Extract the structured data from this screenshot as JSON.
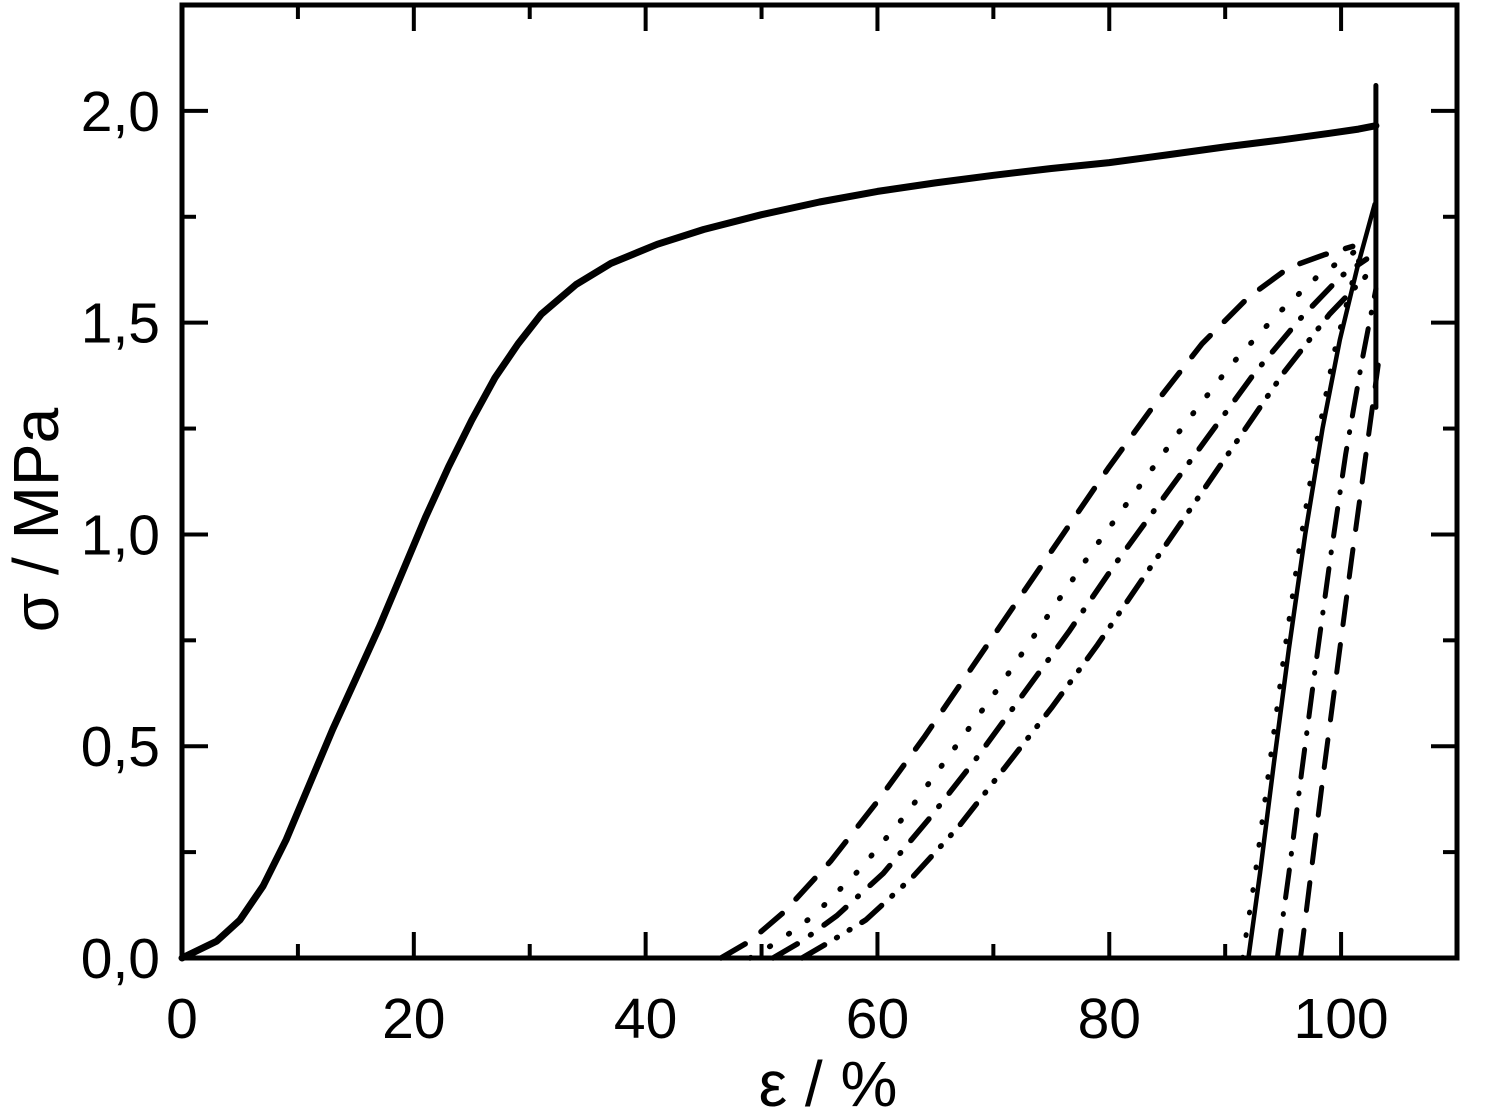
{
  "figure": {
    "background_color": "#ffffff",
    "ink_color": "#000000"
  },
  "chart_data": {
    "type": "line",
    "title": "",
    "xlabel": "ε / %",
    "ylabel": "σ / MPa",
    "xlim": [
      0,
      110
    ],
    "ylim": [
      0,
      2.25
    ],
    "grid": false,
    "legend": "none",
    "x_ticks": {
      "major": [
        0,
        20,
        40,
        60,
        80,
        100
      ],
      "labels": [
        "0",
        "20",
        "40",
        "60",
        "80",
        "100"
      ],
      "minor": [
        10,
        30,
        50,
        70,
        90
      ]
    },
    "y_ticks": {
      "major": [
        0,
        0.5,
        1.0,
        1.5,
        2.0
      ],
      "labels": [
        "0,0",
        "0,5",
        "1,0",
        "1,5",
        "2,0"
      ],
      "minor": [
        0.25,
        0.75,
        1.25,
        1.75
      ]
    },
    "series": [
      {
        "name": "loading-curve",
        "role": "monotonic loading to failure",
        "style": "solid",
        "width": 7,
        "points": [
          [
            0,
            0
          ],
          [
            3,
            0.04
          ],
          [
            5,
            0.09
          ],
          [
            7,
            0.17
          ],
          [
            9,
            0.28
          ],
          [
            11,
            0.41
          ],
          [
            13,
            0.54
          ],
          [
            15,
            0.66
          ],
          [
            17,
            0.78
          ],
          [
            19,
            0.91
          ],
          [
            21,
            1.04
          ],
          [
            23,
            1.16
          ],
          [
            25,
            1.27
          ],
          [
            27,
            1.37
          ],
          [
            29,
            1.45
          ],
          [
            31,
            1.52
          ],
          [
            34,
            1.59
          ],
          [
            37,
            1.64
          ],
          [
            41,
            1.685
          ],
          [
            45,
            1.72
          ],
          [
            50,
            1.755
          ],
          [
            55,
            1.785
          ],
          [
            60,
            1.81
          ],
          [
            65,
            1.83
          ],
          [
            70,
            1.848
          ],
          [
            75,
            1.864
          ],
          [
            80,
            1.878
          ],
          [
            85,
            1.896
          ],
          [
            90,
            1.915
          ],
          [
            95,
            1.932
          ],
          [
            99,
            1.947
          ],
          [
            101.5,
            1.957
          ],
          [
            103,
            1.965
          ]
        ]
      },
      {
        "name": "failure-drop",
        "role": "vertical rupture line",
        "style": "solid",
        "width": 5,
        "points": [
          [
            103,
            2.06
          ],
          [
            103,
            1.3
          ]
        ]
      },
      {
        "name": "unload-dashed",
        "role": "unloading curve 1",
        "style": "dashed",
        "width": 5.5,
        "points": [
          [
            46.5,
            0
          ],
          [
            49,
            0.04
          ],
          [
            52,
            0.11
          ],
          [
            56,
            0.23
          ],
          [
            60,
            0.37
          ],
          [
            64,
            0.52
          ],
          [
            68,
            0.68
          ],
          [
            72,
            0.84
          ],
          [
            76,
            1.0
          ],
          [
            80,
            1.16
          ],
          [
            84,
            1.31
          ],
          [
            88,
            1.45
          ],
          [
            92,
            1.56
          ],
          [
            95.5,
            1.63
          ],
          [
            98.5,
            1.66
          ],
          [
            101,
            1.68
          ]
        ]
      },
      {
        "name": "unload-dotted",
        "role": "unloading curve 2",
        "style": "dotted",
        "width": 5.5,
        "points": [
          [
            49,
            0
          ],
          [
            51.5,
            0.04
          ],
          [
            54.5,
            0.1
          ],
          [
            58.5,
            0.21
          ],
          [
            62.5,
            0.34
          ],
          [
            66.5,
            0.49
          ],
          [
            70.5,
            0.64
          ],
          [
            74.5,
            0.8
          ],
          [
            78.5,
            0.96
          ],
          [
            82.5,
            1.11
          ],
          [
            86.5,
            1.26
          ],
          [
            90.5,
            1.4
          ],
          [
            94.5,
            1.52
          ],
          [
            98,
            1.61
          ],
          [
            101.3,
            1.67
          ]
        ]
      },
      {
        "name": "unload-dashdot",
        "role": "unloading curve 3",
        "style": "dash-dot",
        "width": 5.5,
        "points": [
          [
            51,
            0
          ],
          [
            53.5,
            0.04
          ],
          [
            56.5,
            0.1
          ],
          [
            60.5,
            0.2
          ],
          [
            64.5,
            0.33
          ],
          [
            68.5,
            0.47
          ],
          [
            72.5,
            0.62
          ],
          [
            76.5,
            0.77
          ],
          [
            80.5,
            0.93
          ],
          [
            84.5,
            1.08
          ],
          [
            88.5,
            1.23
          ],
          [
            92.5,
            1.38
          ],
          [
            96.5,
            1.51
          ],
          [
            100,
            1.61
          ],
          [
            102.2,
            1.65
          ]
        ]
      },
      {
        "name": "unload-dashdotdot",
        "role": "unloading curve 4",
        "style": "dash-dot-dot",
        "width": 5.5,
        "points": [
          [
            53.5,
            0
          ],
          [
            56,
            0.04
          ],
          [
            59,
            0.09
          ],
          [
            63,
            0.19
          ],
          [
            67,
            0.31
          ],
          [
            71,
            0.45
          ],
          [
            75,
            0.59
          ],
          [
            79,
            0.74
          ],
          [
            83,
            0.9
          ],
          [
            87,
            1.06
          ],
          [
            91,
            1.22
          ],
          [
            95,
            1.38
          ],
          [
            99,
            1.52
          ],
          [
            102.5,
            1.62
          ]
        ]
      },
      {
        "name": "reload-dotted",
        "role": "reloading curve 1",
        "style": "dotted",
        "width": 5,
        "points": [
          [
            91.5,
            0
          ],
          [
            92.5,
            0.18
          ],
          [
            93.7,
            0.43
          ],
          [
            95,
            0.7
          ],
          [
            96.4,
            0.97
          ],
          [
            97.9,
            1.22
          ],
          [
            99.4,
            1.43
          ],
          [
            100.9,
            1.59
          ],
          [
            102,
            1.69
          ]
        ]
      },
      {
        "name": "reload-solid",
        "role": "reloading curve 2",
        "style": "solid",
        "width": 4.5,
        "points": [
          [
            92,
            0
          ],
          [
            93,
            0.2
          ],
          [
            94.2,
            0.46
          ],
          [
            95.5,
            0.73
          ],
          [
            96.9,
            1.0
          ],
          [
            98.4,
            1.25
          ],
          [
            99.9,
            1.46
          ],
          [
            101.4,
            1.63
          ],
          [
            102.9,
            1.78
          ]
        ]
      },
      {
        "name": "reload-dashdot",
        "role": "reloading curve 3",
        "style": "dash-dot",
        "width": 5,
        "points": [
          [
            94.5,
            0
          ],
          [
            95.5,
            0.2
          ],
          [
            96.6,
            0.44
          ],
          [
            97.8,
            0.69
          ],
          [
            99.1,
            0.95
          ],
          [
            100.4,
            1.19
          ],
          [
            101.8,
            1.41
          ],
          [
            103,
            1.58
          ]
        ]
      },
      {
        "name": "reload-dashed",
        "role": "reloading curve 4",
        "style": "dashed",
        "width": 5,
        "points": [
          [
            96.5,
            0
          ],
          [
            97.4,
            0.2
          ],
          [
            98.5,
            0.44
          ],
          [
            99.7,
            0.69
          ],
          [
            100.9,
            0.94
          ],
          [
            102.1,
            1.18
          ],
          [
            103.2,
            1.4
          ]
        ]
      }
    ]
  }
}
